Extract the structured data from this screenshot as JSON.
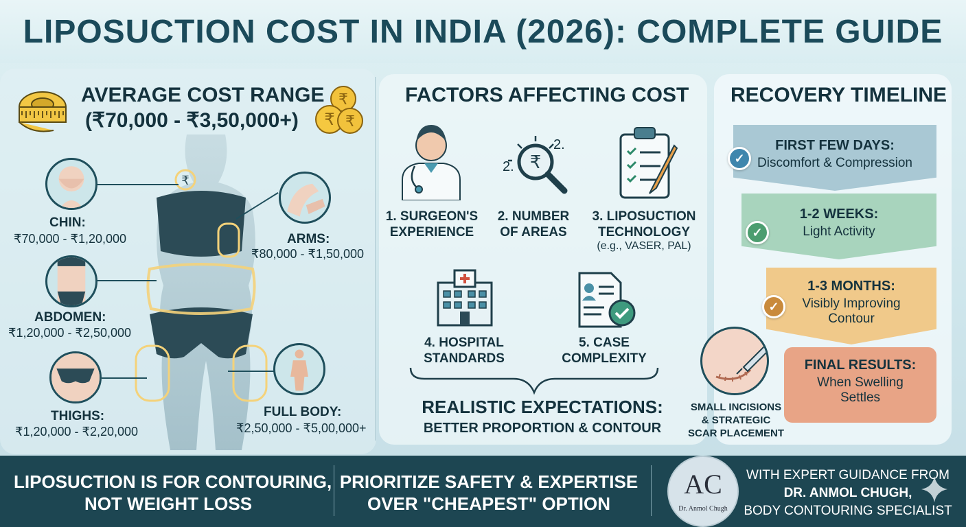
{
  "header": {
    "title": "LIPOSUCTION COST IN INDIA (2026): COMPLETE GUIDE"
  },
  "cost": {
    "title": "AVERAGE COST RANGE",
    "range": "(₹70,000 - ₹3,50,000+)",
    "areas": [
      {
        "label": "CHIN:",
        "price": "₹70,000 - ₹1,20,000"
      },
      {
        "label": "ARMS:",
        "price": "₹80,000 - ₹1,50,000"
      },
      {
        "label": "ABDOMEN:",
        "price": "₹1,20,000 - ₹2,50,000"
      },
      {
        "label": "THIGHS:",
        "price": "₹1,20,000 - ₹2,20,000"
      },
      {
        "label": "FULL BODY:",
        "price": "₹2,50,000 - ₹5,00,000+"
      }
    ]
  },
  "factors": {
    "title": "FACTORS AFFECTING COST",
    "items": [
      {
        "line1": "1. SURGEON'S",
        "line2": "EXPERIENCE",
        "icon": "doctor-icon"
      },
      {
        "line1": "2. NUMBER",
        "line2": "OF AREAS",
        "icon": "magnifier-rupee-icon"
      },
      {
        "line1": "3. LIPOSUCTION",
        "line2": "TECHNOLOGY",
        "note": "(e.g., VASER, PAL)",
        "icon": "clipboard-icon"
      },
      {
        "line1": "4. HOSPITAL",
        "line2": "STANDARDS",
        "icon": "hospital-icon"
      },
      {
        "line1": "5. CASE",
        "line2": "COMPLEXITY",
        "icon": "case-file-icon"
      }
    ],
    "magnifier_marks": [
      "2.",
      "2."
    ],
    "realistic_title": "REALISTIC EXPECTATIONS:",
    "realistic_sub": "BETTER PROPORTION & CONTOUR"
  },
  "recovery": {
    "title": "RECOVERY TIMELINE",
    "steps": [
      {
        "title": "FIRST FEW DAYS:",
        "line1": "Discomfort & Compression",
        "line2": "",
        "color": "#a9c8d4",
        "check": "#3f86ad"
      },
      {
        "title": "1-2 WEEKS:",
        "line1": "Light Activity",
        "line2": "",
        "color": "#a8d4bd",
        "check": "#4c9d6f"
      },
      {
        "title": "1-3 MONTHS:",
        "line1": "Visibly Improving",
        "line2": "Contour",
        "color": "#f0c98a",
        "check": "#c98a3c"
      },
      {
        "title": "FINAL RESULTS:",
        "line1": "When Swelling",
        "line2": "Settles",
        "color": "#e8a486",
        "check": "#c86a4c"
      }
    ],
    "incision_line1": "SMALL INCISIONS",
    "incision_line2": "& STRATEGIC",
    "incision_line3": "SCAR PLACEMENT"
  },
  "footer": {
    "left_line1": "LIPOSUCTION IS FOR CONTOURING,",
    "left_line2": "NOT WEIGHT LOSS",
    "mid_line1": "PRIORITIZE SAFETY & EXPERTISE",
    "mid_line2": "OVER \"CHEAPEST\" OPTION",
    "right_line1": "WITH EXPERT GUIDANCE FROM",
    "right_line2": "DR. ANMOL CHUGH,",
    "right_line3": "BODY CONTOURING SPECIALIST",
    "logo_name": "Dr. Anmol Chugh"
  }
}
